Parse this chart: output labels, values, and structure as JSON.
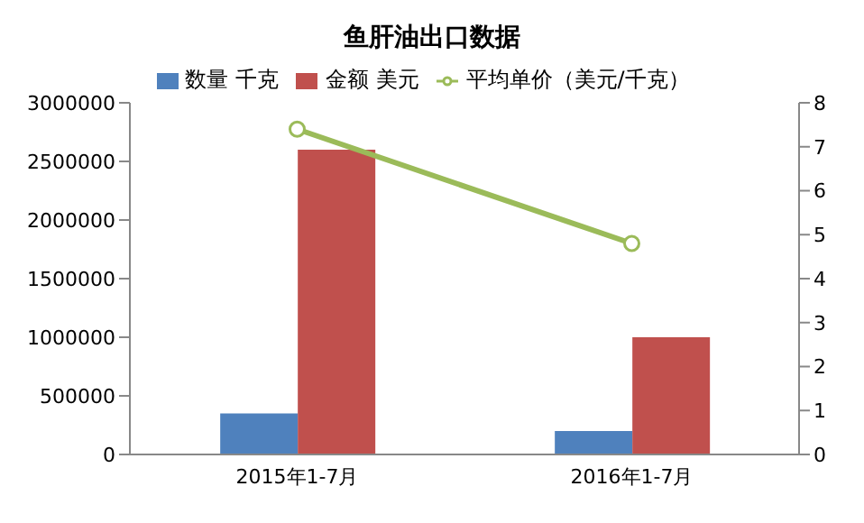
{
  "chart_data": {
    "type": "bar",
    "title": "鱼肝油出口数据",
    "categories": [
      "2015年1-7月",
      "2016年1-7月"
    ],
    "series": [
      {
        "name": "数量 千克",
        "color": "#4f81bd",
        "values": [
          350000,
          200000
        ]
      },
      {
        "name": "金额 美元",
        "color": "#c0504d",
        "values": [
          2600000,
          1000000
        ]
      },
      {
        "name": "平均单价（美元/千克）",
        "type": "line",
        "axis": "y2",
        "color": "#9bbb59",
        "values": [
          7.4,
          4.8
        ],
        "marker": "circle"
      }
    ],
    "ylim": [
      0,
      3000000
    ],
    "yticks": [
      0,
      500000,
      1000000,
      1500000,
      2000000,
      2500000,
      3000000
    ],
    "y2lim": [
      0,
      8
    ],
    "y2ticks": [
      0,
      1,
      2,
      3,
      4,
      5,
      6,
      7,
      8
    ],
    "grid": false,
    "legend": "top"
  }
}
